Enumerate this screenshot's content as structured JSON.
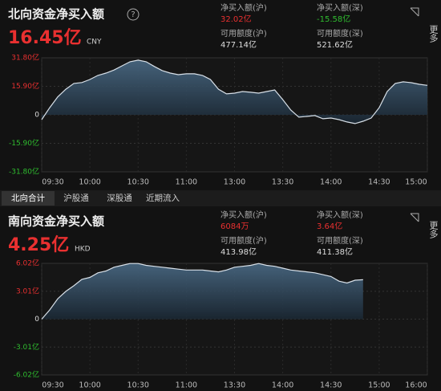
{
  "north": {
    "title": "北向资金净买入额",
    "total": "16.45亿",
    "currency": "CNY",
    "stats": [
      {
        "label": "净买入额(沪)",
        "value": "32.02亿",
        "color": "#e93030"
      },
      {
        "label": "净买入额(深)",
        "value": "-15.58亿",
        "color": "#2fbd2f"
      },
      {
        "label": "可用额度(沪)",
        "value": "477.14亿",
        "color": "#dddddd"
      },
      {
        "label": "可用额度(深)",
        "value": "521.62亿",
        "color": "#dddddd"
      }
    ],
    "chart": {
      "type": "area",
      "ylim": [
        -31.8,
        31.8
      ],
      "yticks": [
        {
          "value": 31.8,
          "label": "31.80亿"
        },
        {
          "value": 15.9,
          "label": "15.90亿"
        },
        0,
        {
          "value": -15.9,
          "label": "-15.90亿"
        },
        {
          "value": -31.8,
          "label": "-31.80亿"
        }
      ],
      "xlim": [
        0,
        48
      ],
      "xticks": [
        {
          "value": 0,
          "label": "09:30"
        },
        {
          "value": 6,
          "label": "10:00"
        },
        {
          "value": 12,
          "label": "10:30"
        },
        {
          "value": 18,
          "label": "11:00"
        },
        {
          "value": 24,
          "label": "13:00"
        },
        {
          "value": 30,
          "label": "13:30"
        },
        {
          "value": 36,
          "label": "14:00"
        },
        {
          "value": 42,
          "label": "14:30"
        },
        {
          "value": 48,
          "label": "15:00"
        }
      ],
      "values": [
        -2.7,
        4,
        10,
        14.3,
        17.5,
        18,
        19.7,
        22,
        23.3,
        25,
        27.3,
        29.6,
        30.5,
        29.6,
        27,
        24.7,
        23.3,
        22.4,
        22.9,
        22.9,
        22,
        19.7,
        14.3,
        11.7,
        12.1,
        13,
        12.6,
        12.1,
        13,
        13.9,
        8.5,
        2.7,
        -1.3,
        -0.9,
        -0.4,
        -2.2,
        -1.8,
        -2.7,
        -4,
        -4.9,
        -3.6,
        -1.8,
        4,
        13,
        17.5,
        18.4,
        17.9,
        17,
        16.45
      ]
    }
  },
  "tabs": [
    "北向合计",
    "沪股通",
    "深股通",
    "近期流入"
  ],
  "south": {
    "title": "南向资金净买入额",
    "total": "4.25亿",
    "currency": "HKD",
    "stats": [
      {
        "label": "净买入额(沪)",
        "value": "6084万",
        "color": "#e93030"
      },
      {
        "label": "净买入额(深)",
        "value": "3.64亿",
        "color": "#e93030"
      },
      {
        "label": "可用额度(沪)",
        "value": "413.98亿",
        "color": "#dddddd"
      },
      {
        "label": "可用额度(深)",
        "value": "411.38亿",
        "color": "#dddddd"
      }
    ],
    "chart": {
      "type": "area",
      "ylim": [
        -6.02,
        6.02
      ],
      "yticks": [
        {
          "value": 6.02,
          "label": "6.02亿"
        },
        {
          "value": 3.01,
          "label": "3.01亿"
        },
        0,
        {
          "value": -3.01,
          "label": "-3.01亿"
        },
        {
          "value": -6.02,
          "label": "-6.02亿"
        }
      ],
      "xlim": [
        0,
        48
      ],
      "xticks": [
        {
          "value": 0,
          "label": "09:30"
        },
        {
          "value": 6,
          "label": "10:00"
        },
        {
          "value": 12,
          "label": "10:30"
        },
        {
          "value": 18,
          "label": "11:00"
        },
        {
          "value": 24,
          "label": "13:30"
        },
        {
          "value": 30,
          "label": "14:00"
        },
        {
          "value": 36,
          "label": "14:30"
        },
        {
          "value": 42,
          "label": "15:00"
        },
        {
          "value": 48,
          "label": "16:00"
        }
      ],
      "values": [
        0,
        1.0,
        2.2,
        3.0,
        3.6,
        4.3,
        4.5,
        5.0,
        5.2,
        5.6,
        5.8,
        6.0,
        6.0,
        5.8,
        5.7,
        5.6,
        5.5,
        5.4,
        5.3,
        5.3,
        5.3,
        5.2,
        5.1,
        5.3,
        5.6,
        5.7,
        5.8,
        6.0,
        5.8,
        5.7,
        5.5,
        5.3,
        5.2,
        5.1,
        5.0,
        4.8,
        4.6,
        4.1,
        3.9,
        4.2,
        4.25
      ]
    }
  },
  "more": "更多"
}
